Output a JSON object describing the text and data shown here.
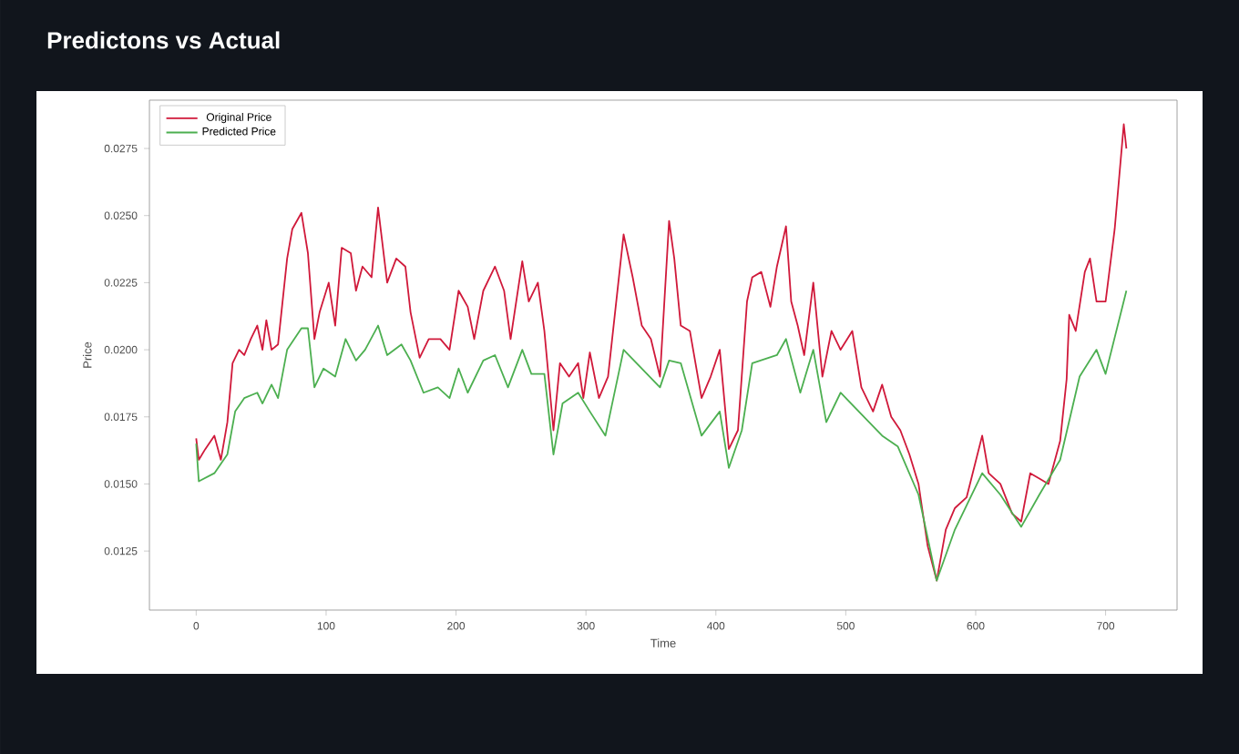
{
  "chart_data": {
    "type": "line",
    "title": "Predictons vs Actual",
    "xlabel": "Time",
    "ylabel": "Price",
    "xlim": [
      -36,
      755
    ],
    "ylim": [
      0.0103,
      0.0293
    ],
    "xticks": [
      0,
      100,
      200,
      300,
      400,
      500,
      600,
      700
    ],
    "yticks": [
      0.0125,
      {
        "value": 0.015,
        "label": "0.0150"
      },
      0.0175,
      {
        "value": 0.02,
        "label": "0.0200"
      },
      0.0225,
      {
        "value": 0.025,
        "label": "0.0250"
      },
      0.0275
    ],
    "legend": "top left",
    "grid": false,
    "series": [
      {
        "name": "Original Price",
        "color": "#d0193a",
        "x": [
          0,
          2,
          7,
          14,
          19,
          24,
          28,
          33,
          37,
          42,
          47,
          51,
          54,
          58,
          63,
          70,
          74,
          81,
          86,
          91,
          95,
          102,
          107,
          112,
          119,
          123,
          128,
          135,
          140,
          147,
          154,
          161,
          165,
          172,
          179,
          188,
          195,
          202,
          209,
          214,
          221,
          230,
          237,
          242,
          251,
          256,
          263,
          268,
          275,
          280,
          287,
          294,
          298,
          303,
          310,
          317,
          329,
          336,
          343,
          350,
          357,
          364,
          368,
          373,
          380,
          389,
          396,
          403,
          410,
          417,
          424,
          428,
          435,
          442,
          447,
          454,
          458,
          463,
          468,
          475,
          482,
          489,
          496,
          505,
          512,
          521,
          528,
          535,
          542,
          549,
          556,
          563,
          570,
          577,
          584,
          593,
          605,
          610,
          619,
          628,
          635,
          642,
          649,
          656,
          665,
          670,
          672,
          677,
          684,
          688,
          693,
          700,
          707,
          714,
          716
        ],
        "values": [
          0.0167,
          0.0159,
          0.0163,
          0.0168,
          0.0159,
          0.0173,
          0.0195,
          0.02,
          0.0198,
          0.0204,
          0.0209,
          0.02,
          0.0211,
          0.02,
          0.0202,
          0.0234,
          0.0245,
          0.0251,
          0.0236,
          0.0204,
          0.0214,
          0.0225,
          0.0209,
          0.0238,
          0.0236,
          0.0222,
          0.0231,
          0.0227,
          0.0253,
          0.0225,
          0.0234,
          0.0231,
          0.0214,
          0.0197,
          0.0204,
          0.0204,
          0.02,
          0.0222,
          0.0216,
          0.0204,
          0.0222,
          0.0231,
          0.0222,
          0.0204,
          0.0233,
          0.0218,
          0.0225,
          0.0207,
          0.017,
          0.0195,
          0.019,
          0.0195,
          0.0182,
          0.0199,
          0.0182,
          0.019,
          0.0243,
          0.0227,
          0.0209,
          0.0204,
          0.019,
          0.0248,
          0.0234,
          0.0209,
          0.0207,
          0.0182,
          0.019,
          0.02,
          0.0163,
          0.017,
          0.0218,
          0.0227,
          0.0229,
          0.0216,
          0.0231,
          0.0246,
          0.0218,
          0.0209,
          0.0198,
          0.0225,
          0.019,
          0.0207,
          0.02,
          0.0207,
          0.0186,
          0.0177,
          0.0187,
          0.0175,
          0.017,
          0.0161,
          0.015,
          0.0127,
          0.0114,
          0.0133,
          0.0141,
          0.0145,
          0.0168,
          0.0154,
          0.015,
          0.0139,
          0.0136,
          0.0154,
          0.0152,
          0.015,
          0.0166,
          0.0189,
          0.0213,
          0.0207,
          0.0229,
          0.0234,
          0.0218,
          0.0218,
          0.0245,
          0.0284,
          0.0275
        ]
      },
      {
        "name": "Predicted Price",
        "color": "#4caf50",
        "x": [
          0,
          2,
          14,
          24,
          30,
          37,
          47,
          51,
          58,
          63,
          70,
          81,
          86,
          91,
          98,
          107,
          115,
          123,
          130,
          140,
          147,
          158,
          165,
          175,
          186,
          195,
          202,
          209,
          221,
          230,
          240,
          251,
          258,
          268,
          275,
          282,
          294,
          303,
          315,
          329,
          343,
          357,
          364,
          373,
          389,
          403,
          410,
          420,
          428,
          447,
          454,
          465,
          475,
          485,
          496,
          510,
          528,
          540,
          556,
          570,
          584,
          605,
          619,
          635,
          649,
          665,
          680,
          693,
          700,
          716
        ],
        "values": [
          0.0165,
          0.0151,
          0.0154,
          0.0161,
          0.0177,
          0.0182,
          0.0184,
          0.018,
          0.0187,
          0.0182,
          0.02,
          0.0208,
          0.0208,
          0.0186,
          0.0193,
          0.019,
          0.0204,
          0.0196,
          0.02,
          0.0209,
          0.0198,
          0.0202,
          0.0196,
          0.0184,
          0.0186,
          0.0182,
          0.0193,
          0.0184,
          0.0196,
          0.0198,
          0.0186,
          0.02,
          0.0191,
          0.0191,
          0.0161,
          0.018,
          0.0184,
          0.0177,
          0.0168,
          0.02,
          0.0193,
          0.0186,
          0.0196,
          0.0195,
          0.0168,
          0.0177,
          0.0156,
          0.017,
          0.0195,
          0.0198,
          0.0204,
          0.0184,
          0.02,
          0.0173,
          0.0184,
          0.0177,
          0.0168,
          0.0164,
          0.0146,
          0.0114,
          0.0133,
          0.0154,
          0.0146,
          0.0134,
          0.0146,
          0.0159,
          0.019,
          0.02,
          0.0191,
          0.0222
        ]
      }
    ]
  }
}
